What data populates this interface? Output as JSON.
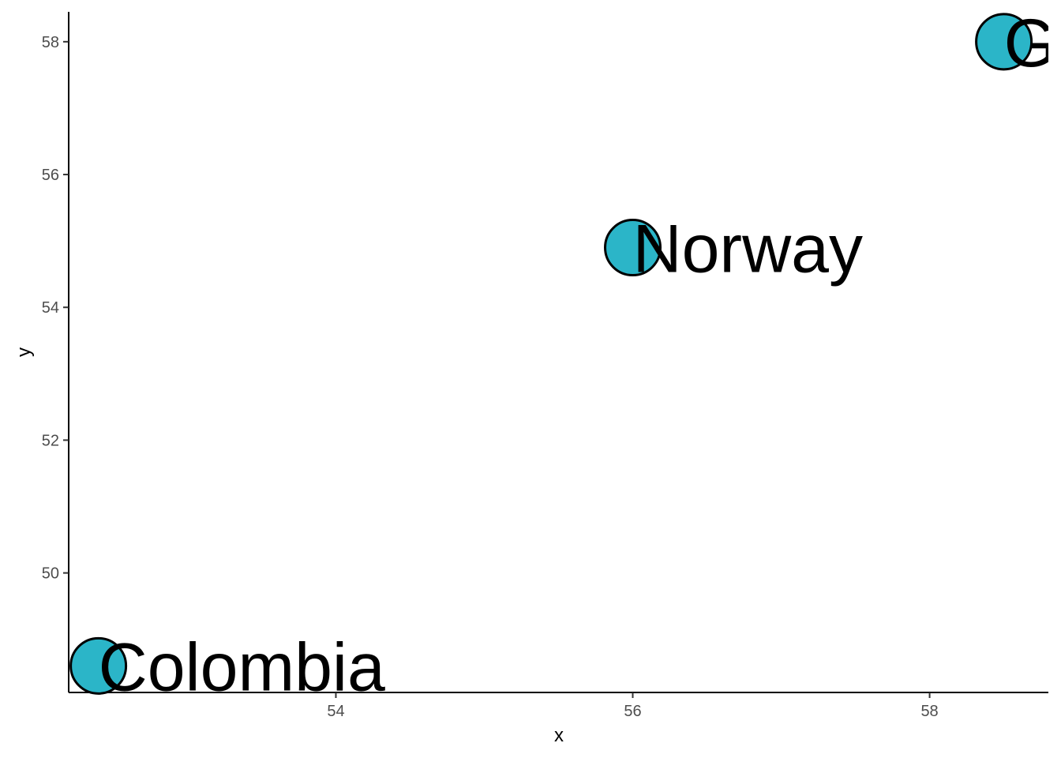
{
  "chart_data": {
    "type": "scatter",
    "title": "",
    "xlabel": "x",
    "ylabel": "y",
    "xlim": [
      52.2,
      58.8
    ],
    "ylim": [
      48.2,
      58.45
    ],
    "x_ticks": [
      54,
      56,
      58
    ],
    "y_ticks": [
      50,
      52,
      54,
      56,
      58
    ],
    "x_tick_labels": [
      "54",
      "56",
      "58"
    ],
    "y_tick_labels": [
      "50",
      "52",
      "54",
      "56",
      "58"
    ],
    "grid": false,
    "legend": "none",
    "marker_color": "#2BB5C8",
    "marker_stroke": "#000000",
    "points": [
      {
        "x": 52.4,
        "y": 48.6,
        "label": "Colombia"
      },
      {
        "x": 56.0,
        "y": 54.9,
        "label": "Norway"
      },
      {
        "x": 58.5,
        "y": 58.0,
        "label": "G"
      }
    ]
  }
}
